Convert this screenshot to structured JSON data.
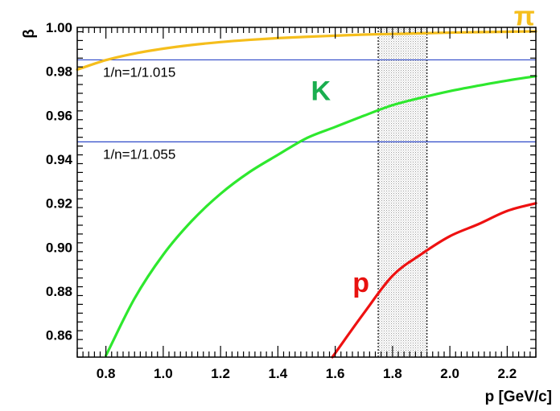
{
  "chart_data": {
    "type": "line",
    "xlabel": "p [GeV/c]",
    "ylabel": "β",
    "xlim": [
      0.7,
      2.3
    ],
    "ylim": [
      0.85,
      1.0
    ],
    "x_ticks": [
      "0.8",
      "1.0",
      "1.2",
      "1.4",
      "1.6",
      "1.8",
      "2.0",
      "2.2"
    ],
    "y_ticks": [
      "0.86",
      "0.88",
      "0.90",
      "0.92",
      "0.94",
      "0.96",
      "0.98",
      "1.00"
    ],
    "series": [
      {
        "name": "π",
        "color": "#f5be1c",
        "x": [
          0.7,
          0.8,
          0.9,
          1.0,
          1.1,
          1.2,
          1.3,
          1.4,
          1.5,
          1.6,
          1.7,
          1.8,
          1.9,
          2.0,
          2.1,
          2.2,
          2.3
        ],
        "y": [
          0.9808,
          0.9851,
          0.9881,
          0.9903,
          0.992,
          0.9933,
          0.9943,
          0.9951,
          0.9957,
          0.9962,
          0.9967,
          0.997,
          0.9973,
          0.9976,
          0.9978,
          0.998,
          0.9982
        ]
      },
      {
        "name": "K",
        "color": "#2ee82e",
        "x": [
          0.8,
          0.9,
          1.0,
          1.1,
          1.2,
          1.3,
          1.4,
          1.5,
          1.6,
          1.7,
          1.8,
          1.9,
          2.0,
          2.1,
          2.2,
          2.3
        ],
        "y": [
          0.8507,
          0.8767,
          0.8966,
          0.912,
          0.9243,
          0.9341,
          0.942,
          0.9496,
          0.9547,
          0.9598,
          0.9646,
          0.968,
          0.971,
          0.9735,
          0.9758,
          0.9778
        ]
      },
      {
        "name": "p",
        "color": "#ee1111",
        "x": [
          1.59,
          1.7,
          1.8,
          1.9,
          2.0,
          2.1,
          2.2,
          2.3
        ],
        "y": [
          0.85,
          0.87,
          0.887,
          0.8968,
          0.905,
          0.9105,
          0.9165,
          0.92
        ]
      }
    ],
    "reference_lines": [
      {
        "y": 0.9852,
        "label": "1/n=1/1.015",
        "color": "#2f49c8"
      },
      {
        "y": 0.9479,
        "label": "1/n=1/1.055",
        "color": "#2f49c8"
      }
    ],
    "shaded_band": {
      "x": [
        1.75,
        1.92
      ]
    },
    "legend_labels": [
      {
        "text": "π",
        "x": 2.26,
        "y": 1.001,
        "color": "#f5be1c"
      },
      {
        "text": "K",
        "x": 1.55,
        "y": 0.9669,
        "color": "#1aae4f"
      },
      {
        "text": "p",
        "x": 1.69,
        "y": 0.8796,
        "color": "#e8120f"
      }
    ],
    "grid": false
  }
}
